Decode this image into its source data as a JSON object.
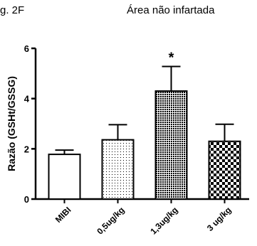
{
  "figure_label": "g. 2F",
  "chart_data": {
    "type": "bar",
    "title": "Área não infartada",
    "xlabel": "",
    "ylabel": "Razão (GSHt/GSSG)",
    "ylim": [
      0,
      6
    ],
    "yticks": [
      0,
      2,
      4,
      6
    ],
    "categories": [
      "MIBI",
      "0,5ug/kg",
      "1,3ug/kg",
      "3 ug/kg"
    ],
    "values": [
      1.78,
      2.36,
      4.3,
      2.3
    ],
    "errors": [
      0.17,
      0.6,
      0.98,
      0.68
    ],
    "patterns": [
      "white",
      "sparse-dots",
      "dense-dots",
      "checker"
    ],
    "annotations": [
      {
        "category": "1,3ug/kg",
        "text": "*"
      }
    ],
    "grid": false,
    "legend": "none"
  }
}
